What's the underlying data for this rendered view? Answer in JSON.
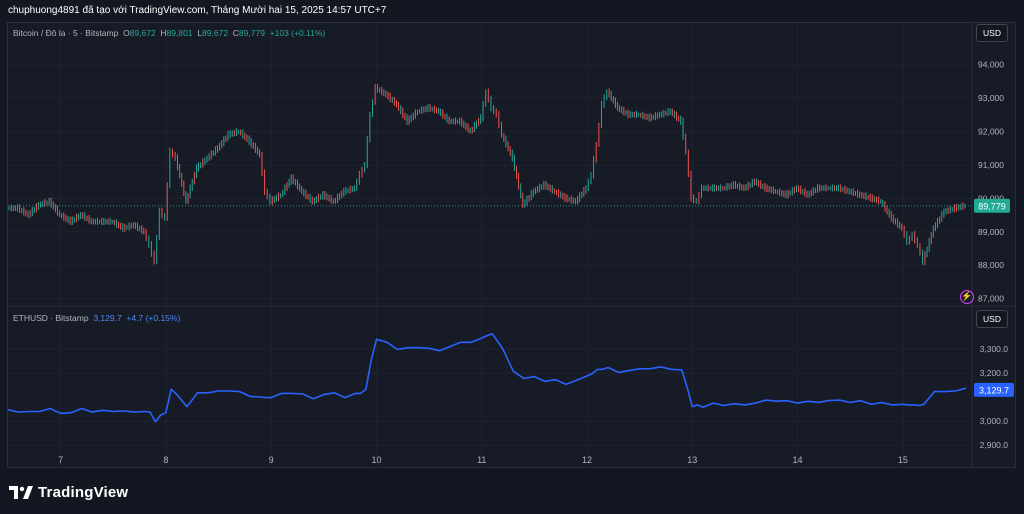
{
  "header": {
    "caption": "chuphuong4891 đã tạo với TradingView.com, Tháng Mười hai 15, 2025 14:57 UTC+7"
  },
  "legend_btc": {
    "symbol": "Bitcoin / Đô la · 5 · Bitstamp",
    "o_label": "O",
    "o_value": "89,672",
    "h_label": "H",
    "h_value": "89,801",
    "l_label": "L",
    "l_value": "89,672",
    "c_label": "C",
    "c_value": "89,779",
    "change": "+103 (+0.11%)"
  },
  "legend_eth": {
    "symbol": "ETHUSD · Bitstamp",
    "value": "3,129.7",
    "change": "+4.7 (+0.15%)"
  },
  "currency_top": "USD",
  "currency_bottom": "USD",
  "brand": "TradingView",
  "colors": {
    "background": "#131722",
    "pane": "#171b26",
    "up": "#26a69a",
    "down": "#ef5350",
    "eth_line": "#2962ff",
    "alert": "#e040fb"
  },
  "chart_data": [
    {
      "type": "line",
      "title": "Bitcoin / Đô la · 5 · Bitstamp",
      "ylim": [
        86900,
        94800
      ],
      "yticks": [
        "94,000",
        "93,000",
        "92,000",
        "91,000",
        "90,000",
        "89,000",
        "88,000",
        "87,000"
      ],
      "ytick_values": [
        94000,
        93000,
        92000,
        91000,
        90000,
        89000,
        88000,
        87000
      ],
      "last_price_label": "89,779",
      "last_price": 89779,
      "x": [
        6.5,
        6.6,
        6.7,
        6.8,
        6.9,
        7.0,
        7.1,
        7.2,
        7.3,
        7.4,
        7.5,
        7.6,
        7.7,
        7.8,
        7.85,
        7.9,
        7.95,
        8.0,
        8.05,
        8.1,
        8.2,
        8.3,
        8.4,
        8.5,
        8.6,
        8.7,
        8.8,
        8.9,
        8.95,
        9.0,
        9.1,
        9.2,
        9.3,
        9.4,
        9.5,
        9.6,
        9.7,
        9.8,
        9.85,
        9.9,
        9.95,
        10.0,
        10.1,
        10.2,
        10.3,
        10.4,
        10.5,
        10.6,
        10.7,
        10.8,
        10.9,
        11.0,
        11.05,
        11.1,
        11.15,
        11.2,
        11.3,
        11.4,
        11.5,
        11.6,
        11.7,
        11.8,
        11.9,
        12.0,
        12.05,
        12.1,
        12.15,
        12.2,
        12.3,
        12.4,
        12.5,
        12.6,
        12.7,
        12.8,
        12.9,
        12.95,
        13.0,
        13.05,
        13.1,
        13.2,
        13.3,
        13.4,
        13.5,
        13.6,
        13.7,
        13.8,
        13.9,
        14.0,
        14.1,
        14.2,
        14.3,
        14.4,
        14.5,
        14.6,
        14.7,
        14.8,
        14.9,
        15.0,
        15.05,
        15.1,
        15.15,
        15.2,
        15.3,
        15.4,
        15.5,
        15.6
      ],
      "y": [
        89700,
        89700,
        89500,
        89800,
        89900,
        89500,
        89300,
        89500,
        89300,
        89300,
        89300,
        89100,
        89200,
        89000,
        88600,
        88100,
        89600,
        89400,
        91400,
        91200,
        89900,
        90900,
        91200,
        91500,
        91900,
        92000,
        91700,
        91300,
        90200,
        89900,
        90100,
        90600,
        90200,
        89900,
        90100,
        89900,
        90200,
        90300,
        90700,
        91000,
        92500,
        93300,
        93100,
        92800,
        92300,
        92600,
        92700,
        92600,
        92300,
        92300,
        92000,
        92400,
        93200,
        92700,
        92500,
        91900,
        91200,
        89800,
        90200,
        90400,
        90200,
        90000,
        89900,
        90300,
        90700,
        91600,
        92800,
        93200,
        92700,
        92500,
        92500,
        92400,
        92500,
        92600,
        92300,
        91400,
        90000,
        89900,
        90300,
        90300,
        90300,
        90400,
        90300,
        90500,
        90300,
        90200,
        90100,
        90300,
        90100,
        90300,
        90300,
        90300,
        90200,
        90100,
        90000,
        89900,
        89400,
        89100,
        88700,
        88900,
        88600,
        88100,
        89100,
        89600,
        89700,
        89779
      ]
    },
    {
      "type": "line",
      "title": "ETHUSD · Bitstamp",
      "ylim": [
        2880,
        3420
      ],
      "yticks": [
        "3,300.0",
        "3,200.0",
        "3,000.0",
        "2,900.0"
      ],
      "ytick_values": [
        3300,
        3200,
        3000,
        2900
      ],
      "last_price_label": "3,129.7",
      "last_price": 3129.7,
      "xticks": [
        "7",
        "8",
        "9",
        "10",
        "11",
        "12",
        "13",
        "14",
        "15"
      ],
      "xtick_values": [
        7,
        8,
        9,
        10,
        11,
        12,
        13,
        14,
        15
      ],
      "x": [
        6.5,
        6.6,
        6.7,
        6.8,
        6.9,
        7.0,
        7.1,
        7.2,
        7.3,
        7.4,
        7.5,
        7.6,
        7.7,
        7.8,
        7.85,
        7.9,
        7.95,
        8.0,
        8.05,
        8.1,
        8.2,
        8.3,
        8.4,
        8.5,
        8.6,
        8.7,
        8.8,
        8.9,
        8.95,
        9.0,
        9.1,
        9.2,
        9.3,
        9.4,
        9.5,
        9.6,
        9.7,
        9.8,
        9.85,
        9.9,
        9.95,
        10.0,
        10.1,
        10.2,
        10.3,
        10.4,
        10.5,
        10.6,
        10.7,
        10.8,
        10.9,
        11.0,
        11.05,
        11.1,
        11.15,
        11.2,
        11.3,
        11.4,
        11.5,
        11.6,
        11.7,
        11.8,
        11.9,
        12.0,
        12.05,
        12.1,
        12.15,
        12.2,
        12.3,
        12.4,
        12.5,
        12.6,
        12.7,
        12.8,
        12.9,
        12.95,
        13.0,
        13.05,
        13.1,
        13.2,
        13.3,
        13.4,
        13.5,
        13.6,
        13.7,
        13.8,
        13.9,
        14.0,
        14.1,
        14.2,
        14.3,
        14.4,
        14.5,
        14.6,
        14.7,
        14.8,
        14.9,
        15.0,
        15.05,
        15.1,
        15.15,
        15.2,
        15.3,
        15.4,
        15.5,
        15.6
      ],
      "y": [
        3040,
        3040,
        3035,
        3045,
        3050,
        3040,
        3035,
        3045,
        3040,
        3040,
        3045,
        3040,
        3045,
        3040,
        3030,
        3000,
        3020,
        3040,
        3130,
        3120,
        3060,
        3110,
        3120,
        3120,
        3130,
        3120,
        3110,
        3100,
        3090,
        3100,
        3110,
        3120,
        3110,
        3100,
        3110,
        3110,
        3100,
        3110,
        3120,
        3130,
        3260,
        3340,
        3320,
        3300,
        3300,
        3310,
        3300,
        3300,
        3310,
        3320,
        3330,
        3340,
        3360,
        3360,
        3340,
        3300,
        3200,
        3180,
        3180,
        3170,
        3170,
        3160,
        3170,
        3180,
        3200,
        3210,
        3220,
        3220,
        3210,
        3210,
        3210,
        3220,
        3220,
        3220,
        3210,
        3150,
        3060,
        3060,
        3060,
        3070,
        3070,
        3070,
        3075,
        3075,
        3080,
        3085,
        3080,
        3080,
        3080,
        3085,
        3085,
        3080,
        3080,
        3080,
        3075,
        3075,
        3075,
        3070,
        3060,
        3070,
        3060,
        3075,
        3120,
        3130,
        3125,
        3129.7
      ]
    }
  ]
}
